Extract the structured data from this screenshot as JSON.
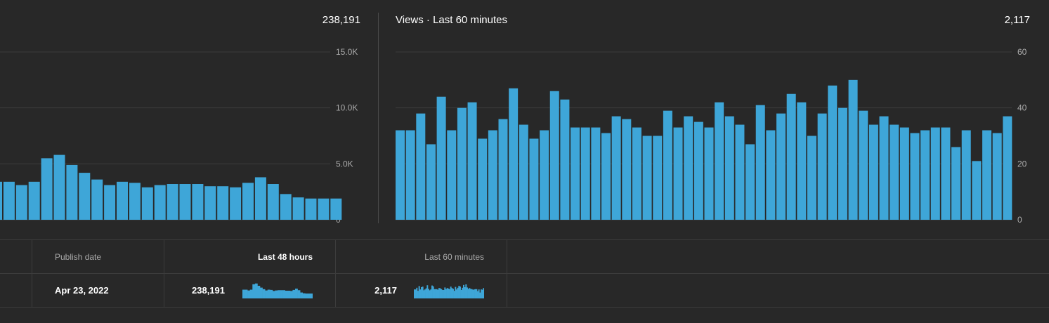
{
  "colors": {
    "bar": "#3ea6d8",
    "grid": "#3c3c3c",
    "background": "#282828"
  },
  "left_chart": {
    "total": "238,191",
    "y_ticks": [
      "15.0K",
      "10.0K",
      "5.0K",
      "0"
    ]
  },
  "right_chart": {
    "title": "Views · Last 60 minutes",
    "total": "2,117",
    "y_ticks": [
      "60",
      "40",
      "20",
      "0"
    ]
  },
  "chart_data": [
    {
      "type": "bar",
      "title": "",
      "ylim": [
        0,
        15000
      ],
      "values": [
        3400,
        3400,
        3100,
        3400,
        5500,
        5800,
        4900,
        4200,
        3600,
        3100,
        3400,
        3300,
        2900,
        3100,
        3200,
        3200,
        3200,
        3000,
        3000,
        2900,
        3300,
        3800,
        3200,
        2300,
        2000,
        1900,
        1900,
        1900
      ]
    },
    {
      "type": "bar",
      "title": "Views · Last 60 minutes",
      "ylim": [
        0,
        60
      ],
      "values": [
        32,
        32,
        38,
        27,
        44,
        32,
        40,
        42,
        29,
        32,
        36,
        47,
        34,
        29,
        32,
        46,
        43,
        33,
        33,
        33,
        31,
        37,
        36,
        33,
        30,
        30,
        39,
        33,
        37,
        35,
        33,
        42,
        37,
        34,
        27,
        41,
        32,
        38,
        45,
        42,
        30,
        38,
        48,
        40,
        50,
        39,
        34,
        37,
        34,
        33,
        31,
        32,
        33,
        33,
        26,
        32,
        21,
        32,
        31,
        37
      ]
    }
  ],
  "table": {
    "headers": {
      "publish_date": "Publish date",
      "last_48": "Last 48 hours",
      "last_60": "Last 60 minutes"
    },
    "row": {
      "publish_date": "Apr 23, 2022",
      "last_48_value": "238,191",
      "last_60_value": "2,117"
    }
  }
}
